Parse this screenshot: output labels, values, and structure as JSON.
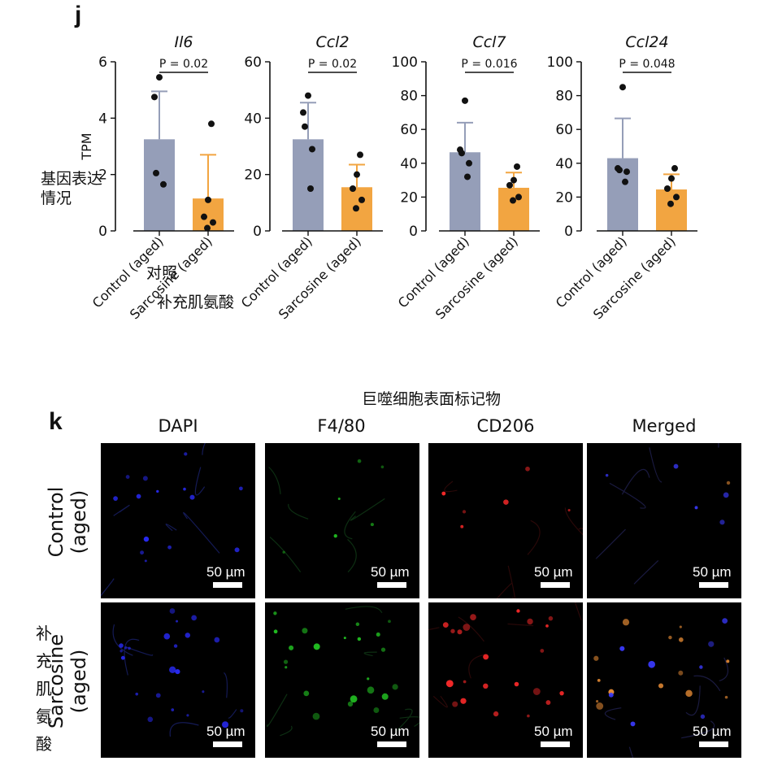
{
  "panel_j": {
    "label": "j",
    "annotations": {
      "ylabel_cn_line1": "基因表达",
      "ylabel_cn_line2": "情况",
      "control_cn": "对照",
      "sarcosine_cn": "补充肌氨酸"
    }
  },
  "chart_data": [
    {
      "type": "bar",
      "title": "Il6",
      "ylabel": "TPM",
      "categories": [
        "Control (aged)",
        "Sarcosine (aged)"
      ],
      "values": [
        3.25,
        1.15
      ],
      "error": [
        1.7,
        1.55
      ],
      "points": [
        [
          5.45,
          4.75,
          2.05,
          1.65
        ],
        [
          3.8,
          1.1,
          0.5,
          0.3,
          0.1
        ]
      ],
      "ylim": [
        0,
        6
      ],
      "yticks": [
        "0",
        "2",
        "4",
        "6"
      ],
      "p_label": "P = 0.02",
      "colors": [
        "#959eb8",
        "#f2a541"
      ]
    },
    {
      "type": "bar",
      "title": "Ccl2",
      "ylabel": "",
      "categories": [
        "Control (aged)",
        "Sarcosine (aged)"
      ],
      "values": [
        32.5,
        15.5
      ],
      "error": [
        13,
        8
      ],
      "points": [
        [
          48,
          42,
          37,
          29,
          15
        ],
        [
          27,
          20,
          15,
          11,
          8
        ]
      ],
      "ylim": [
        0,
        60
      ],
      "yticks": [
        "0",
        "20",
        "40",
        "60"
      ],
      "p_label": "P = 0.02",
      "colors": [
        "#959eb8",
        "#f2a541"
      ]
    },
    {
      "type": "bar",
      "title": "Ccl7",
      "ylabel": "",
      "categories": [
        "Control (aged)",
        "Sarcosine (aged)"
      ],
      "values": [
        46.5,
        25.5
      ],
      "error": [
        17.5,
        9
      ],
      "points": [
        [
          77,
          48,
          46,
          40,
          32
        ],
        [
          38,
          30,
          27,
          20,
          18
        ]
      ],
      "ylim": [
        0,
        100
      ],
      "yticks": [
        "0",
        "20",
        "40",
        "60",
        "80",
        "100"
      ],
      "p_label": "P = 0.016",
      "colors": [
        "#959eb8",
        "#f2a541"
      ]
    },
    {
      "type": "bar",
      "title": "Ccl24",
      "ylabel": "",
      "categories": [
        "Control (aged)",
        "Sarcosine (aged)"
      ],
      "values": [
        43,
        24.5
      ],
      "error": [
        23.5,
        9
      ],
      "points": [
        [
          85,
          37,
          36,
          35,
          29
        ],
        [
          37,
          31,
          25,
          20,
          16
        ]
      ],
      "ylim": [
        0,
        100
      ],
      "yticks": [
        "0",
        "20",
        "40",
        "60",
        "80",
        "100"
      ],
      "p_label": "P = 0.048",
      "colors": [
        "#959eb8",
        "#f2a541"
      ]
    }
  ],
  "panel_k": {
    "label": "k",
    "header_cn": "巨噬细胞表面标记物",
    "columns": [
      "DAPI",
      "F4/80",
      "CD206",
      "Merged"
    ],
    "rows": [
      {
        "label_line1": "Control",
        "label_line2": "(aged)"
      },
      {
        "label_line1": "Sarcosine",
        "label_line2": "(aged)"
      }
    ],
    "row2_cn": "补充肌氨酸",
    "scale_bar_label": "50 µm",
    "channel_colors": {
      "DAPI": "#2a2cff",
      "F4/80": "#22c322",
      "CD206": "#ff2a2a",
      "Merged": "#ff9a3a"
    }
  }
}
